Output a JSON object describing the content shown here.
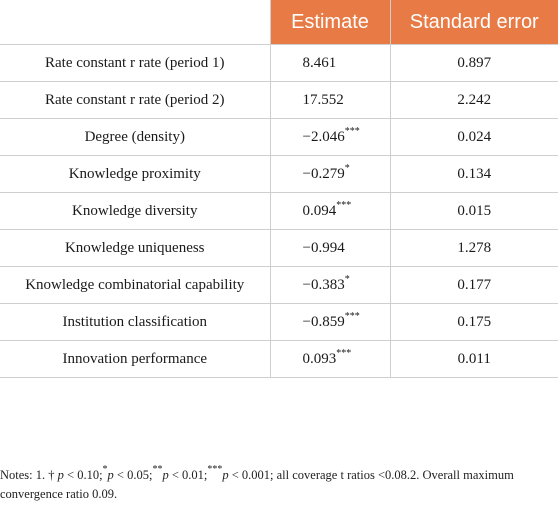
{
  "table": {
    "headers": [
      "",
      "Estimate",
      "Standard error"
    ],
    "rows": [
      {
        "label": "Rate constant r rate (period 1)",
        "estimate": "8.461",
        "sig": "",
        "se": "0.897"
      },
      {
        "label": "Rate constant r rate (period 2)",
        "estimate": "17.552",
        "sig": "",
        "se": "2.242"
      },
      {
        "label": "Degree (density)",
        "estimate": "−2.046",
        "sig": "***",
        "se": "0.024"
      },
      {
        "label": "Knowledge proximity",
        "estimate": "−0.279",
        "sig": "*",
        "se": "0.134"
      },
      {
        "label": "Knowledge diversity",
        "estimate": "0.094",
        "sig": "***",
        "se": "0.015"
      },
      {
        "label": "Knowledge uniqueness",
        "estimate": "−0.994",
        "sig": "",
        "se": "1.278"
      },
      {
        "label": "Knowledge combinatorial capability",
        "estimate": "−0.383",
        "sig": "*",
        "se": "0.177"
      },
      {
        "label": "Institution classification",
        "estimate": "−0.859",
        "sig": "***",
        "se": "0.175"
      },
      {
        "label": "Innovation performance",
        "estimate": "0.093",
        "sig": "***",
        "se": "0.011"
      }
    ]
  },
  "notes": {
    "prefix": "Notes: 1. † ",
    "p_symbol": "p",
    "t1": " < 0.10;",
    "s1": "*",
    "t2": " < 0.05;",
    "s2": "**",
    "t3": " < 0.01;",
    "s3": "***",
    "t4": " < 0.001; all coverage t ratios <0.08.2. Overall maximum convergence ratio 0.09."
  },
  "colors": {
    "header_bg": "#e87a45",
    "header_text": "#ffffff",
    "grid": "#cfcfcf"
  }
}
